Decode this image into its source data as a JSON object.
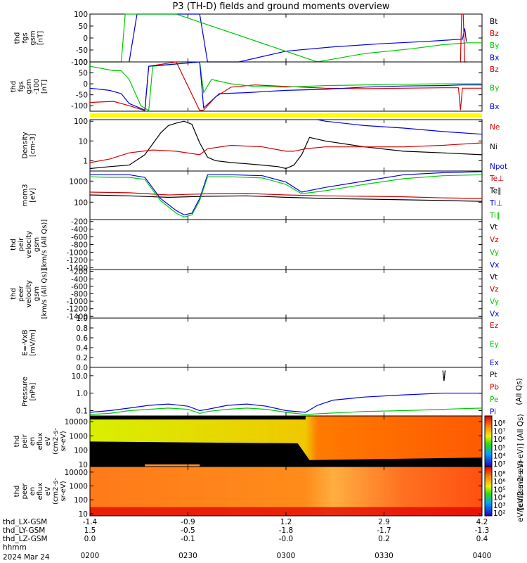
{
  "title": "P3 (TH-D) fields and ground moments overview",
  "colors": {
    "black": "#000000",
    "red": "#d40000",
    "green": "#00c800",
    "blue": "#0000e6",
    "yellow": "#ffff00"
  },
  "chart_data": [
    {
      "id": "fgs",
      "type": "line",
      "ylabel": [
        "thd",
        "fgs",
        "gsm",
        "[nT]"
      ],
      "yticks": [
        "100",
        "50",
        "0",
        "-50",
        "-100"
      ],
      "ylim": [
        -100,
        100
      ],
      "legend": [
        {
          "name": "Bt",
          "color": "black"
        },
        {
          "name": "Bz",
          "color": "red"
        },
        {
          "name": "By",
          "color": "green"
        },
        {
          "name": "Bx",
          "color": "blue"
        }
      ],
      "series": [
        {
          "name": "Bx",
          "color": "blue",
          "x": [
            0.1,
            0.12,
            0.28,
            0.3,
            0.38,
            0.5,
            0.62,
            0.74,
            0.86,
            0.92,
            0.95,
            0.956,
            0.96
          ],
          "y": [
            -100,
            100,
            100,
            -100,
            -100,
            -55,
            -37,
            -24,
            -14,
            -8,
            -5,
            40,
            -15
          ]
        },
        {
          "name": "By",
          "color": "green",
          "x": [
            0.0,
            0.08,
            0.09,
            0.18,
            0.2,
            0.22,
            0.58,
            0.7,
            0.82,
            0.9,
            0.95,
            0.96,
            1.0
          ],
          "y": [
            -100,
            -100,
            100,
            100,
            100,
            100,
            -100,
            -65,
            -45,
            -28,
            -22,
            -20,
            -20
          ]
        },
        {
          "name": "Bz",
          "color": "red",
          "x": [
            0.945,
            0.948,
            0.952,
            0.956,
            0.96
          ],
          "y": [
            -100,
            100,
            100,
            -100,
            -100
          ]
        }
      ]
    },
    {
      "id": "fgs-dsl",
      "type": "line",
      "ylabel": [
        "thd",
        "fgs",
        "gsm",
        "-100",
        "[nT]"
      ],
      "yticks": [
        "100",
        "50",
        "0",
        "-50",
        "-100"
      ],
      "ylim": [
        -125,
        100
      ],
      "legend": [
        {
          "name": "Bz",
          "color": "red"
        },
        {
          "name": "By",
          "color": "green"
        },
        {
          "name": "Bx",
          "color": "blue"
        }
      ],
      "series": [
        {
          "name": "Bz",
          "color": "red",
          "x": [
            0.0,
            0.06,
            0.1,
            0.14,
            0.15,
            0.22,
            0.28,
            0.29,
            0.32,
            0.36,
            0.42,
            0.5,
            0.6,
            0.7,
            0.8,
            0.9,
            0.94,
            0.945,
            0.95,
            1.0
          ],
          "y": [
            -85,
            -80,
            -100,
            -122,
            80,
            100,
            -122,
            -120,
            -60,
            -15,
            -5,
            -12,
            -20,
            -22,
            -20,
            -18,
            -18,
            -120,
            -20,
            -20
          ]
        },
        {
          "name": "By",
          "color": "green",
          "x": [
            0.0,
            0.06,
            0.08,
            0.1,
            0.13,
            0.15,
            0.16,
            0.28,
            0.29,
            0.31,
            0.36,
            0.42,
            0.5,
            0.6,
            0.7,
            0.8,
            0.9,
            0.95,
            1.0
          ],
          "y": [
            80,
            60,
            60,
            20,
            -100,
            -122,
            80,
            100,
            -40,
            20,
            0,
            -12,
            -15,
            -8,
            -5,
            -2,
            0,
            0,
            0
          ]
        },
        {
          "name": "Bx",
          "color": "blue",
          "x": [
            0.0,
            0.05,
            0.08,
            0.1,
            0.14,
            0.15,
            0.28,
            0.29,
            0.33,
            0.4,
            0.5,
            0.6,
            0.7,
            0.8,
            0.9,
            0.95,
            1.0
          ],
          "y": [
            -20,
            -30,
            -45,
            -90,
            -120,
            80,
            100,
            -110,
            -45,
            -40,
            -30,
            -25,
            -15,
            -10,
            -8,
            -5,
            -5
          ]
        }
      ]
    },
    {
      "id": "density",
      "type": "line",
      "scale": "log",
      "ylabel": [
        "Density",
        "[cm-3]"
      ],
      "yticks": [
        "100",
        "10",
        "1"
      ],
      "ylim": [
        0.3,
        120
      ],
      "legend": [
        {
          "name": "Ne",
          "color": "red"
        },
        {
          "name": "Ni",
          "color": "black"
        },
        {
          "name": "Npot",
          "color": "blue"
        }
      ],
      "series": [
        {
          "name": "Ni",
          "color": "black",
          "x": [
            0.0,
            0.05,
            0.1,
            0.14,
            0.18,
            0.2,
            0.22,
            0.24,
            0.26,
            0.28,
            0.3,
            0.32,
            0.36,
            0.4,
            0.44,
            0.48,
            0.5,
            0.52,
            0.54,
            0.56,
            0.6,
            0.7,
            0.8,
            0.9,
            1.0
          ],
          "y": [
            0.4,
            0.5,
            0.6,
            2,
            25,
            60,
            80,
            100,
            70,
            8,
            1.5,
            1.0,
            0.8,
            0.7,
            0.6,
            0.5,
            0.4,
            0.6,
            2,
            15,
            10,
            5,
            3,
            2.5,
            2.0
          ]
        },
        {
          "name": "Ne",
          "color": "red",
          "x": [
            0.0,
            0.05,
            0.1,
            0.16,
            0.22,
            0.28,
            0.3,
            0.36,
            0.44,
            0.5,
            0.52,
            0.55,
            0.6,
            0.7,
            0.8,
            0.9,
            1.0
          ],
          "y": [
            0.8,
            1.2,
            2.5,
            3.5,
            3,
            2,
            4,
            6,
            5,
            3,
            3,
            4,
            5,
            5,
            5,
            6,
            8
          ]
        },
        {
          "name": "Npot",
          "color": "blue",
          "x": [
            0.58,
            0.6,
            0.7,
            0.8,
            0.9,
            1.0
          ],
          "y": [
            120,
            100,
            60,
            45,
            30,
            22
          ]
        }
      ]
    },
    {
      "id": "moments-t",
      "type": "line",
      "scale": "log",
      "ylabel": [
        "mom3",
        "[eV]"
      ],
      "yticks": [
        "1000",
        "100"
      ],
      "ylim": [
        15,
        3000
      ],
      "legend": [
        {
          "name": "Te⊥",
          "color": "red"
        },
        {
          "name": "Te∥",
          "color": "black"
        },
        {
          "name": "Ti⊥",
          "color": "blue"
        },
        {
          "name": "Ti∥",
          "color": "green"
        }
      ],
      "series": [
        {
          "name": "Te⊥",
          "color": "red",
          "x": [
            0.0,
            0.1,
            0.2,
            0.3,
            0.4,
            0.5,
            0.6,
            0.7,
            0.8,
            0.9,
            1.0
          ],
          "y": [
            300,
            280,
            220,
            250,
            260,
            220,
            200,
            190,
            180,
            160,
            150
          ]
        },
        {
          "name": "Te∥",
          "color": "black",
          "x": [
            0.0,
            0.1,
            0.2,
            0.3,
            0.4,
            0.5,
            0.6,
            0.7,
            0.8,
            0.9,
            1.0
          ],
          "y": [
            220,
            200,
            170,
            190,
            200,
            170,
            150,
            140,
            130,
            120,
            110
          ]
        },
        {
          "name": "Ti⊥",
          "color": "blue",
          "x": [
            0.0,
            0.05,
            0.1,
            0.14,
            0.18,
            0.22,
            0.24,
            0.26,
            0.28,
            0.3,
            0.36,
            0.44,
            0.5,
            0.54,
            0.6,
            0.7,
            0.8,
            0.9,
            1.0
          ],
          "y": [
            2000,
            2000,
            2000,
            1500,
            150,
            40,
            25,
            30,
            150,
            2000,
            2000,
            1800,
            900,
            300,
            500,
            1000,
            2000,
            2500,
            2800
          ]
        },
        {
          "name": "Ti∥",
          "color": "green",
          "x": [
            0.0,
            0.05,
            0.1,
            0.14,
            0.18,
            0.22,
            0.24,
            0.26,
            0.28,
            0.3,
            0.36,
            0.44,
            0.5,
            0.54,
            0.6,
            0.7,
            0.8,
            0.9,
            1.0
          ],
          "y": [
            1600,
            1500,
            1500,
            1200,
            120,
            30,
            20,
            25,
            120,
            1600,
            1600,
            1400,
            700,
            250,
            350,
            700,
            1300,
            1800,
            2000
          ]
        }
      ]
    },
    {
      "id": "peir-velocity",
      "type": "line",
      "ylabel": [
        "thd",
        "peir",
        "velocity",
        "gsm",
        "[km/s (All Qs)]"
      ],
      "yticks": [
        "-200",
        "-400",
        "-600",
        "-800",
        "-1000",
        "-1200",
        "-1400"
      ],
      "ylim": [
        -1450,
        -150
      ],
      "legend": [
        {
          "name": "Vt",
          "color": "black"
        },
        {
          "name": "Vz",
          "color": "red"
        },
        {
          "name": "Vy",
          "color": "green"
        },
        {
          "name": "Vx",
          "color": "blue"
        }
      ],
      "series": []
    },
    {
      "id": "peer-velocity",
      "type": "line",
      "ylabel": [
        "thd",
        "peer",
        "velocity",
        "gsm",
        "[km/s (All Qs)]"
      ],
      "yticks": [
        "-200",
        "-400",
        "-600",
        "-800",
        "-1000",
        "-1200",
        "-1400"
      ],
      "ylim": [
        -1450,
        -150
      ],
      "legend": [
        {
          "name": "Vt",
          "color": "black"
        },
        {
          "name": "Vz",
          "color": "red"
        },
        {
          "name": "Vy",
          "color": "green"
        },
        {
          "name": "Vx",
          "color": "blue"
        }
      ],
      "series": []
    },
    {
      "id": "efield",
      "type": "line",
      "ylabel": [
        "E=-VxB",
        "[mV/m]"
      ],
      "yticks": [
        "1.0",
        "0.8",
        "0.6",
        "0.4",
        "0.2",
        "0.0"
      ],
      "ylim": [
        0,
        1
      ],
      "legend": [
        {
          "name": "Ez",
          "color": "red"
        },
        {
          "name": "Ey",
          "color": "green"
        },
        {
          "name": "Ex",
          "color": "blue"
        }
      ],
      "series": []
    },
    {
      "id": "pressure",
      "type": "line",
      "scale": "log",
      "ylabel": [
        "Pressure",
        "[nPa]"
      ],
      "yticks": [
        "10.0",
        "1.0",
        "0.1"
      ],
      "ylim": [
        0.05,
        30
      ],
      "legend": [
        {
          "name": "Pt",
          "color": "black"
        },
        {
          "name": "Pb",
          "color": "red"
        },
        {
          "name": "Pe",
          "color": "green"
        },
        {
          "name": "Pi",
          "color": "blue"
        }
      ],
      "legend_side": "(All Qs)",
      "series": [
        {
          "name": "Pi",
          "color": "blue",
          "x": [
            0.0,
            0.05,
            0.1,
            0.15,
            0.2,
            0.25,
            0.28,
            0.3,
            0.35,
            0.4,
            0.45,
            0.5,
            0.55,
            0.58,
            0.62,
            0.7,
            0.8,
            0.9,
            1.0
          ],
          "y": [
            0.08,
            0.1,
            0.14,
            0.2,
            0.24,
            0.18,
            0.1,
            0.12,
            0.2,
            0.24,
            0.18,
            0.1,
            0.08,
            0.2,
            0.4,
            0.6,
            0.8,
            1.0,
            1.0
          ]
        },
        {
          "name": "Pe",
          "color": "green",
          "x": [
            0.0,
            0.05,
            0.1,
            0.15,
            0.2,
            0.25,
            0.28,
            0.3,
            0.35,
            0.4,
            0.45,
            0.5,
            0.55,
            0.6,
            0.7,
            0.8,
            0.9,
            1.0
          ],
          "y": [
            0.06,
            0.07,
            0.1,
            0.12,
            0.14,
            0.12,
            0.07,
            0.09,
            0.12,
            0.14,
            0.12,
            0.08,
            0.06,
            0.07,
            0.09,
            0.1,
            0.12,
            0.14
          ]
        },
        {
          "name": "Pt",
          "color": "black",
          "x": [
            0.9,
            0.903,
            0.906
          ],
          "y": [
            20,
            5,
            20
          ]
        }
      ]
    },
    {
      "id": "peir-eflux",
      "type": "heatmap",
      "scale": "log",
      "ylabel": [
        "thd",
        "peir",
        "en",
        "eflux",
        "eV",
        "(cm2-s-",
        "sr-eV)"
      ],
      "yticks": [
        "10000",
        "1000",
        "100",
        "10"
      ],
      "ylim": [
        7,
        25000
      ],
      "colorbar": {
        "ticks": [
          "10⁸",
          "10⁷",
          "10⁶",
          "10⁵",
          "10⁴",
          "10³"
        ],
        "label": "[eV/(cm2-s-sr-eV)] (All Qs)"
      }
    },
    {
      "id": "peer-eflux",
      "type": "heatmap",
      "scale": "log",
      "ylabel": [
        "thd",
        "peer",
        "en",
        "eflux",
        "eV",
        "(cm2-s-",
        "sr-eV)"
      ],
      "yticks": [
        "10000",
        "1000",
        "100",
        "10"
      ],
      "ylim": [
        7,
        25000
      ],
      "colorbar": {
        "ticks": [
          "10⁸",
          "10⁶",
          "10⁵",
          "10⁴",
          "10³",
          "10²"
        ],
        "label": "eV/(cm2-s-sr-eV)"
      }
    }
  ],
  "time_axis": {
    "ticks": [
      "0200",
      "0230",
      "0300",
      "0330",
      "0400"
    ],
    "rows": [
      {
        "label": "thd_LX-GSM",
        "values": [
          "-1.4",
          "-0.9",
          "1.2",
          "2.9",
          "4.2"
        ]
      },
      {
        "label": "thd_LY-GSM",
        "values": [
          "1.5",
          "-0.5",
          "-1.8",
          "-1.7",
          "-1.3"
        ]
      },
      {
        "label": "thd_LZ-GSM",
        "values": [
          "0.0",
          "-0.1",
          "-0.0",
          "0.2",
          "0.4"
        ]
      },
      {
        "label": "hhmm",
        "values": []
      }
    ],
    "date": "2024 Mar 24"
  }
}
